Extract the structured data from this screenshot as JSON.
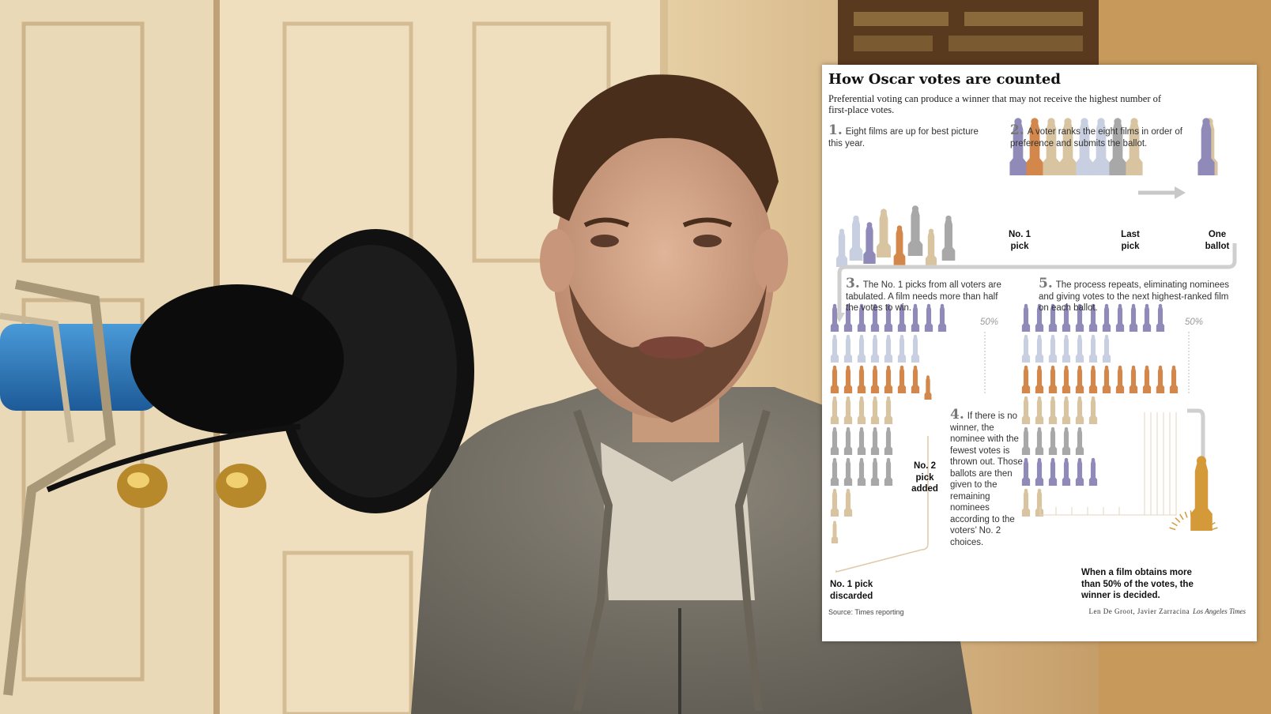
{
  "infographic": {
    "title": "How Oscar votes are counted",
    "subtitle": "Preferential voting can produce a winner that may not receive the highest number of first-place votes.",
    "steps": [
      {
        "num": "1.",
        "text": "Eight films are up for best picture this year."
      },
      {
        "num": "2.",
        "text": "A voter ranks the eight films in order of preference and submits the ballot."
      },
      {
        "num": "3.",
        "text": "The No. 1 picks from all voters are tabulated. A film needs more than half the votes to win."
      },
      {
        "num": "4.",
        "text": "If there is no winner, the nominee with the fewest votes is thrown out. Those ballots are then given to the remaining nominees according to the voters’ No. 2 choices."
      },
      {
        "num": "5.",
        "text": "The process repeats, eliminating nominees and giving votes to the next highest-ranked film on each ballot."
      }
    ],
    "labels": {
      "no1_pick": "No. 1 pick",
      "last_pick": "Last pick",
      "one_ballot": "One ballot",
      "no2_added": "No. 2 pick added",
      "no1_discarded": "No. 1 pick discarded",
      "percent_50": "50%",
      "winner_note": "When a film obtains more than 50% of the votes, the winner is decided."
    },
    "source": "Source: Times reporting",
    "credit": "Len De Groot, Javier Zarracina",
    "publication": "Los Angeles Times",
    "colors": {
      "purple": "#8f8ab8",
      "orange": "#d4874a",
      "tan": "#d8c4a0",
      "lightblue": "#c8cfe0",
      "gray": "#a8a8a8",
      "gold": "#d49a3a"
    }
  }
}
